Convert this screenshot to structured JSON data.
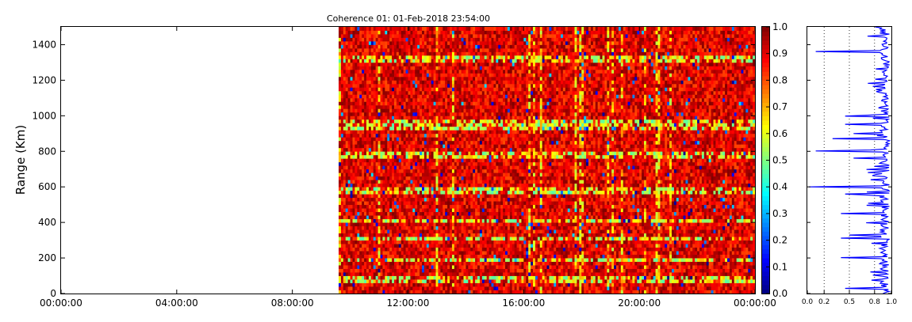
{
  "chart_data": [
    {
      "type": "heatmap",
      "title": "Coherence 01: 01-Feb-2018 23:54:00",
      "xlabel": "",
      "ylabel": "Range (Km)",
      "xticks": [
        "00:00:00",
        "04:00:00",
        "08:00:00",
        "12:00:00",
        "16:00:00",
        "20:00:00",
        "00:00:00"
      ],
      "xlim_hours": [
        0,
        24
      ],
      "ylim": [
        0,
        1500
      ],
      "yticks": [
        0,
        200,
        400,
        600,
        800,
        1000,
        1200,
        1400
      ],
      "data_start_hour": 9.6,
      "data_end_hour": 24,
      "value_range": [
        0,
        1
      ],
      "dominant_value_range": [
        0.8,
        1.0
      ],
      "low_coherence_range_bands_km": [
        80,
        190,
        310,
        410,
        580,
        780,
        940,
        970,
        1320
      ],
      "colormap": "jet",
      "grid": false
    },
    {
      "type": "colorbar",
      "ticks": [
        "0.0",
        "0.1",
        "0.2",
        "0.3",
        "0.4",
        "0.5",
        "0.6",
        "0.7",
        "0.8",
        "0.9",
        "1.0"
      ],
      "range": [
        0,
        1
      ]
    },
    {
      "type": "line",
      "orientation": "vertical-profile",
      "xlim": [
        0,
        1
      ],
      "xticks": [
        "0.0",
        "0.2",
        "0.5",
        "0.8",
        "1.0"
      ],
      "ylim": [
        0,
        1500
      ],
      "color": "#0000ff",
      "grid_x": [
        0.2,
        0.5,
        0.8
      ],
      "dips": [
        {
          "y": 1360,
          "x": 0.1
        },
        {
          "y": 1180,
          "x": 0.72
        },
        {
          "y": 1000,
          "x": 0.45
        },
        {
          "y": 950,
          "x": 0.45
        },
        {
          "y": 900,
          "x": 0.55
        },
        {
          "y": 870,
          "x": 0.3
        },
        {
          "y": 800,
          "x": 0.1
        },
        {
          "y": 760,
          "x": 0.55
        },
        {
          "y": 680,
          "x": 0.72
        },
        {
          "y": 680,
          "x": 0.72
        },
        {
          "y": 600,
          "x": 0.02
        },
        {
          "y": 560,
          "x": 0.45
        },
        {
          "y": 450,
          "x": 0.4
        },
        {
          "y": 400,
          "x": 0.7
        },
        {
          "y": 330,
          "x": 0.5
        },
        {
          "y": 310,
          "x": 0.4
        },
        {
          "y": 200,
          "x": 0.4
        },
        {
          "y": 120,
          "x": 0.75
        },
        {
          "y": 30,
          "x": 0.45
        }
      ]
    }
  ]
}
